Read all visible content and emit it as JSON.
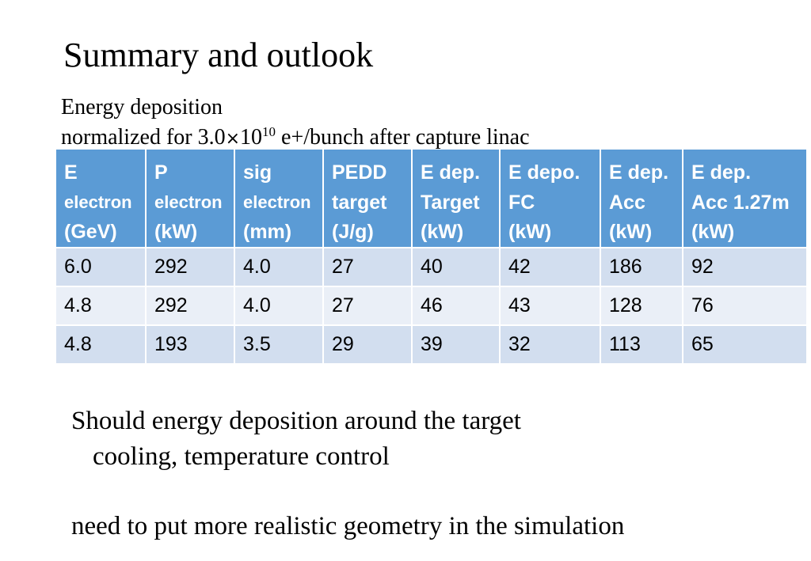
{
  "title": "Summary and outlook",
  "subtitle": {
    "line1": "Energy deposition",
    "line2_pre": "normalized for 3.0",
    "times": "×",
    "base": "10",
    "exponent": "10",
    "line2_post": " e+/bunch after capture linac"
  },
  "table": {
    "headers": [
      [
        "E",
        "electron",
        "(GeV)"
      ],
      [
        "P",
        "electron",
        "(kW)"
      ],
      [
        "sig",
        "electron",
        "(mm)"
      ],
      [
        "PEDD",
        "target",
        "(J/g)"
      ],
      [
        "E dep.",
        "Target",
        "(kW)"
      ],
      [
        "E depo.",
        "FC",
        "(kW)"
      ],
      [
        "E dep.",
        "Acc",
        "(kW)"
      ],
      [
        "E dep.",
        "Acc 1.27m",
        "(kW)"
      ]
    ],
    "rows": [
      [
        "6.0",
        "292",
        "4.0",
        "27",
        "40",
        "42",
        "186",
        "92"
      ],
      [
        "4.8",
        "292",
        "4.0",
        "27",
        "46",
        "43",
        "128",
        "76"
      ],
      [
        "4.8",
        "193",
        "3.5",
        "29",
        "39",
        "32",
        "113",
        "65"
      ]
    ]
  },
  "bullets": {
    "line1": "Should energy deposition around the target",
    "line2": "cooling, temperature control",
    "line3": "need to put more realistic geometry in the simulation"
  },
  "colors": {
    "header_bg": "#5b9bd5",
    "row_odd": "#d2deef",
    "row_even": "#eaeff7"
  }
}
